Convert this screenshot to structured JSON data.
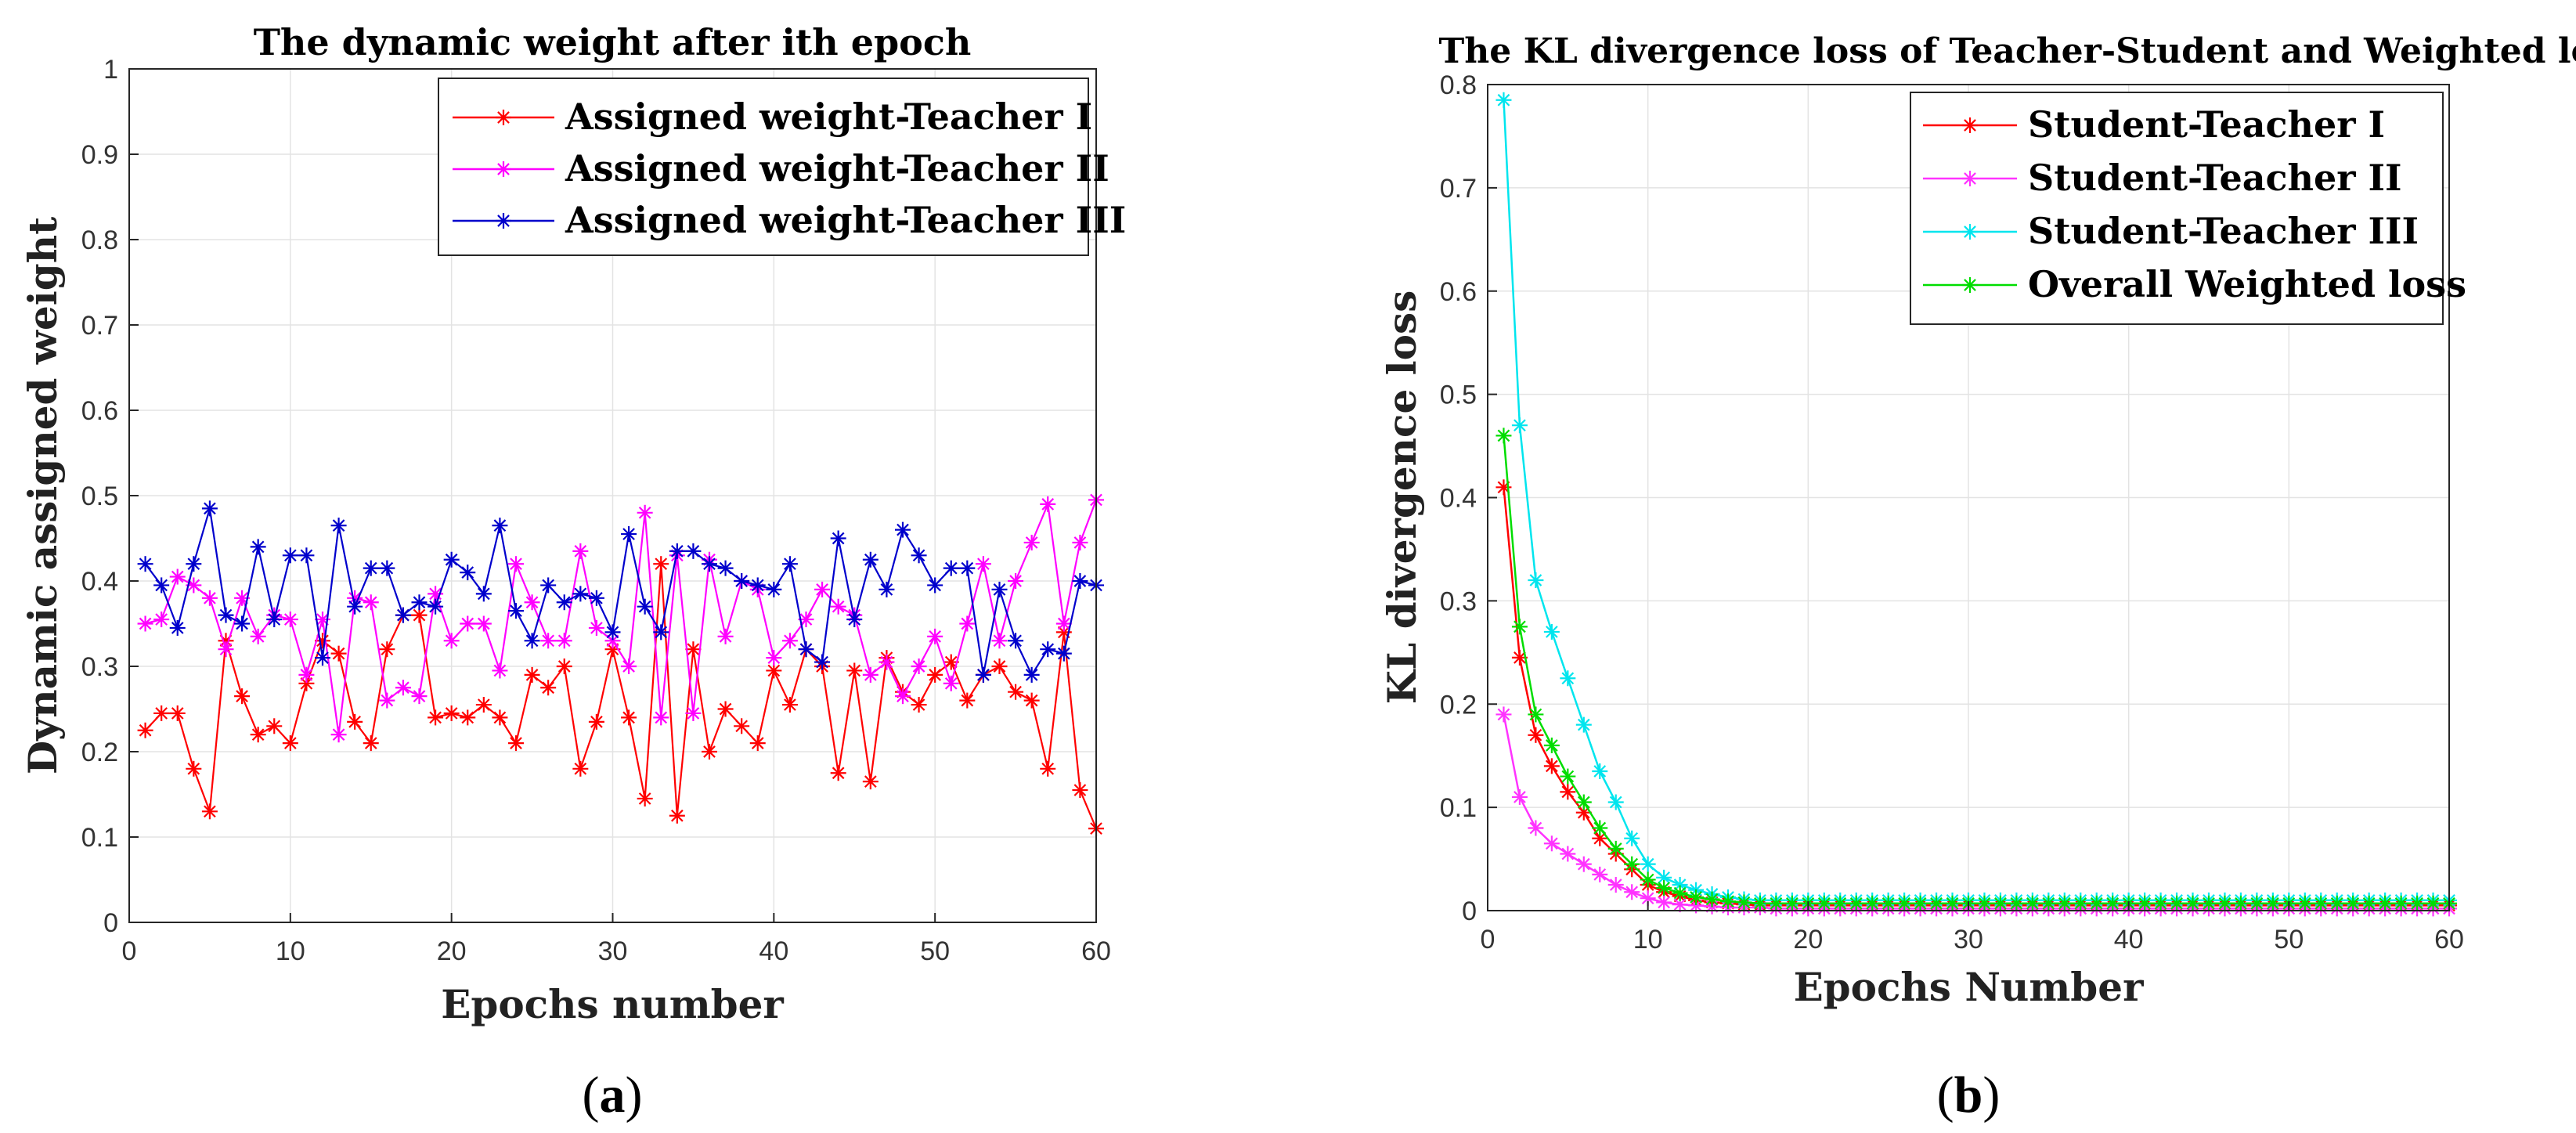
{
  "chart_data": [
    {
      "id": "a",
      "type": "line",
      "caption_letter": "a",
      "title": "The dynamic weight after ith epoch",
      "xlabel": "Epochs number",
      "ylabel": "Dynamic assigned weight",
      "xlim": [
        0,
        60
      ],
      "ylim": [
        0,
        1
      ],
      "xticks": [
        0,
        10,
        20,
        30,
        40,
        50,
        60
      ],
      "yticks": [
        0,
        0.1,
        0.2,
        0.3,
        0.4,
        0.5,
        0.6,
        0.7,
        0.8,
        0.9,
        1
      ],
      "ytick_labels": [
        "0",
        "0.1",
        "0.2",
        "0.3",
        "0.4",
        "0.5",
        "0.6",
        "0.7",
        "0.8",
        "0.9",
        "1"
      ],
      "grid": true,
      "legend_position": "top-right",
      "marker": "asterisk",
      "x": [
        1,
        2,
        3,
        4,
        5,
        6,
        7,
        8,
        9,
        10,
        11,
        12,
        13,
        14,
        15,
        16,
        17,
        18,
        19,
        20,
        21,
        22,
        23,
        24,
        25,
        26,
        27,
        28,
        29,
        30,
        31,
        32,
        33,
        34,
        35,
        36,
        37,
        38,
        39,
        40,
        41,
        42,
        43,
        44,
        45,
        46,
        47,
        48,
        49,
        50,
        51,
        52,
        53,
        54,
        55,
        56,
        57,
        58,
        59,
        60
      ],
      "series": [
        {
          "name": "Assigned weight-Teacher I",
          "color": "#ff0000",
          "values": [
            0.225,
            0.245,
            0.245,
            0.18,
            0.13,
            0.33,
            0.265,
            0.22,
            0.23,
            0.21,
            0.28,
            0.33,
            0.315,
            0.235,
            0.21,
            0.32,
            0.36,
            0.36,
            0.24,
            0.245,
            0.24,
            0.255,
            0.24,
            0.21,
            0.29,
            0.275,
            0.3,
            0.18,
            0.235,
            0.32,
            0.24,
            0.145,
            0.42,
            0.125,
            0.32,
            0.2,
            0.25,
            0.23,
            0.21,
            0.295,
            0.255,
            0.32,
            0.3,
            0.175,
            0.295,
            0.165,
            0.31,
            0.27,
            0.255,
            0.29,
            0.305,
            0.26,
            0.29,
            0.3,
            0.27,
            0.26,
            0.18,
            0.34,
            0.155,
            0.11
          ]
        },
        {
          "name": "Assigned weight-Teacher II",
          "color": "#ff00ff",
          "values": [
            0.35,
            0.355,
            0.405,
            0.395,
            0.38,
            0.32,
            0.38,
            0.335,
            0.36,
            0.355,
            0.29,
            0.355,
            0.22,
            0.38,
            0.375,
            0.26,
            0.275,
            0.265,
            0.385,
            0.33,
            0.35,
            0.35,
            0.295,
            0.42,
            0.375,
            0.33,
            0.33,
            0.435,
            0.345,
            0.33,
            0.3,
            0.48,
            0.24,
            0.43,
            0.245,
            0.425,
            0.335,
            0.4,
            0.39,
            0.31,
            0.33,
            0.355,
            0.39,
            0.37,
            0.36,
            0.29,
            0.305,
            0.265,
            0.3,
            0.335,
            0.28,
            0.35,
            0.42,
            0.33,
            0.4,
            0.445,
            0.49,
            0.35,
            0.445,
            0.495
          ]
        },
        {
          "name": "Assigned weight-Teacher III",
          "color": "#0000cc",
          "values": [
            0.42,
            0.395,
            0.345,
            0.42,
            0.485,
            0.36,
            0.35,
            0.44,
            0.355,
            0.43,
            0.43,
            0.31,
            0.465,
            0.37,
            0.415,
            0.415,
            0.36,
            0.375,
            0.37,
            0.425,
            0.41,
            0.385,
            0.465,
            0.365,
            0.33,
            0.395,
            0.375,
            0.385,
            0.38,
            0.34,
            0.455,
            0.37,
            0.34,
            0.435,
            0.435,
            0.42,
            0.415,
            0.4,
            0.395,
            0.39,
            0.42,
            0.32,
            0.305,
            0.45,
            0.355,
            0.425,
            0.39,
            0.46,
            0.43,
            0.395,
            0.415,
            0.415,
            0.29,
            0.39,
            0.33,
            0.29,
            0.32,
            0.315,
            0.4,
            0.395
          ]
        }
      ]
    },
    {
      "id": "b",
      "type": "line",
      "caption_letter": "b",
      "title": "The KL divergence loss of Teacher-Student and Weighted loss",
      "xlabel": "Epochs Number",
      "ylabel": "KL divergence loss",
      "xlim": [
        0,
        60
      ],
      "ylim": [
        0,
        0.8
      ],
      "xticks": [
        0,
        10,
        20,
        30,
        40,
        50,
        60
      ],
      "yticks": [
        0,
        0.1,
        0.2,
        0.3,
        0.4,
        0.5,
        0.6,
        0.7,
        0.8
      ],
      "ytick_labels": [
        "0",
        "0.1",
        "0.2",
        "0.3",
        "0.4",
        "0.5",
        "0.6",
        "0.7",
        "0.8"
      ],
      "grid": true,
      "legend_position": "top-right",
      "marker": "asterisk",
      "x": [
        1,
        2,
        3,
        4,
        5,
        6,
        7,
        8,
        9,
        10,
        11,
        12,
        13,
        14,
        15,
        16,
        17,
        18,
        19,
        20,
        21,
        22,
        23,
        24,
        25,
        26,
        27,
        28,
        29,
        30,
        31,
        32,
        33,
        34,
        35,
        36,
        37,
        38,
        39,
        40,
        41,
        42,
        43,
        44,
        45,
        46,
        47,
        48,
        49,
        50,
        51,
        52,
        53,
        54,
        55,
        56,
        57,
        58,
        59,
        60
      ],
      "series": [
        {
          "name": "Student-Teacher I",
          "color": "#ff0000",
          "values": [
            0.41,
            0.245,
            0.17,
            0.14,
            0.115,
            0.095,
            0.07,
            0.055,
            0.04,
            0.025,
            0.018,
            0.014,
            0.01,
            0.008,
            0.007,
            0.006,
            0.005,
            0.005,
            0.005,
            0.005,
            0.005,
            0.005,
            0.005,
            0.005,
            0.005,
            0.005,
            0.005,
            0.005,
            0.005,
            0.005,
            0.005,
            0.005,
            0.005,
            0.005,
            0.005,
            0.005,
            0.005,
            0.005,
            0.005,
            0.005,
            0.005,
            0.005,
            0.005,
            0.005,
            0.005,
            0.005,
            0.005,
            0.005,
            0.005,
            0.005,
            0.005,
            0.005,
            0.005,
            0.005,
            0.005,
            0.005,
            0.005,
            0.005,
            0.005,
            0.005
          ]
        },
        {
          "name": "Student-Teacher II",
          "color": "#ff33ff",
          "values": [
            0.19,
            0.11,
            0.08,
            0.065,
            0.055,
            0.045,
            0.035,
            0.025,
            0.018,
            0.012,
            0.008,
            0.006,
            0.005,
            0.004,
            0.003,
            0.003,
            0.003,
            0.002,
            0.002,
            0.002,
            0.002,
            0.002,
            0.002,
            0.002,
            0.002,
            0.002,
            0.002,
            0.002,
            0.002,
            0.002,
            0.002,
            0.002,
            0.002,
            0.002,
            0.002,
            0.002,
            0.002,
            0.002,
            0.002,
            0.002,
            0.002,
            0.002,
            0.002,
            0.002,
            0.002,
            0.002,
            0.002,
            0.002,
            0.002,
            0.002,
            0.002,
            0.002,
            0.002,
            0.002,
            0.002,
            0.002,
            0.002,
            0.002,
            0.002,
            0.002
          ]
        },
        {
          "name": "Student-Teacher III",
          "color": "#00e5ee",
          "values": [
            0.785,
            0.47,
            0.32,
            0.27,
            0.225,
            0.18,
            0.135,
            0.105,
            0.07,
            0.045,
            0.032,
            0.025,
            0.02,
            0.016,
            0.013,
            0.011,
            0.01,
            0.01,
            0.01,
            0.01,
            0.01,
            0.01,
            0.01,
            0.01,
            0.01,
            0.01,
            0.01,
            0.01,
            0.01,
            0.01,
            0.01,
            0.01,
            0.01,
            0.01,
            0.01,
            0.01,
            0.01,
            0.01,
            0.01,
            0.01,
            0.01,
            0.01,
            0.01,
            0.01,
            0.01,
            0.01,
            0.01,
            0.01,
            0.01,
            0.01,
            0.01,
            0.01,
            0.01,
            0.01,
            0.01,
            0.01,
            0.01,
            0.01,
            0.01,
            0.01
          ]
        },
        {
          "name": "Overall Weighted loss",
          "color": "#00dd00",
          "values": [
            0.46,
            0.275,
            0.19,
            0.16,
            0.13,
            0.105,
            0.08,
            0.06,
            0.045,
            0.03,
            0.022,
            0.017,
            0.013,
            0.011,
            0.009,
            0.008,
            0.007,
            0.007,
            0.007,
            0.007,
            0.007,
            0.007,
            0.007,
            0.007,
            0.007,
            0.007,
            0.007,
            0.007,
            0.007,
            0.007,
            0.007,
            0.007,
            0.007,
            0.007,
            0.007,
            0.007,
            0.007,
            0.007,
            0.007,
            0.007,
            0.007,
            0.007,
            0.007,
            0.007,
            0.007,
            0.007,
            0.007,
            0.007,
            0.007,
            0.007,
            0.007,
            0.007,
            0.007,
            0.007,
            0.007,
            0.007,
            0.007,
            0.007,
            0.007,
            0.007
          ]
        }
      ]
    }
  ]
}
